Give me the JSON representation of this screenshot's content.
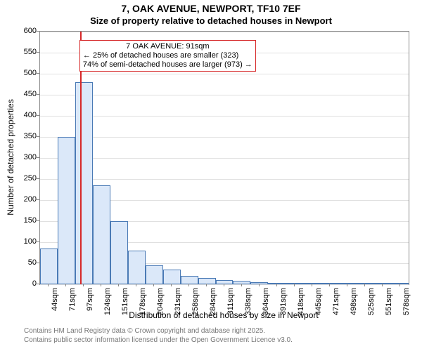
{
  "title": "7, OAK AVENUE, NEWPORT, TF10 7EF",
  "subtitle": "Size of property relative to detached houses in Newport",
  "y_axis_label": "Number of detached properties",
  "x_axis_label": "Distribution of detached houses by size in Newport",
  "chart": {
    "type": "histogram",
    "background_color": "#ffffff",
    "grid_color": "#e0e0e0",
    "bar_fill": "#dbe8f9",
    "bar_stroke": "#4a7ab5",
    "marker_color": "#d62728",
    "ylim": [
      0,
      600
    ],
    "ytick_step": 50,
    "y_ticks": [
      0,
      50,
      100,
      150,
      200,
      250,
      300,
      350,
      400,
      450,
      500,
      550,
      600
    ],
    "x_tick_labels": [
      "44sqm",
      "71sqm",
      "97sqm",
      "124sqm",
      "151sqm",
      "178sqm",
      "204sqm",
      "231sqm",
      "258sqm",
      "284sqm",
      "311sqm",
      "338sqm",
      "364sqm",
      "391sqm",
      "418sqm",
      "445sqm",
      "471sqm",
      "498sqm",
      "525sqm",
      "551sqm",
      "578sqm"
    ],
    "bars": [
      85,
      350,
      480,
      235,
      150,
      80,
      45,
      35,
      20,
      15,
      10,
      8,
      5,
      4,
      3,
      2,
      2,
      1,
      1,
      1,
      1
    ],
    "marker_bin_index": 2,
    "marker_offset_in_bin": -0.22,
    "annotation": {
      "lines": [
        "7 OAK AVENUE: 91sqm",
        "← 25% of detached houses are smaller (323)",
        "74% of semi-detached houses are larger (973) →"
      ],
      "border_color": "#d62728",
      "background_color": "#ffffff",
      "left_bin": 2,
      "top_value": 580
    }
  },
  "footer_line1": "Contains HM Land Registry data © Crown copyright and database right 2025.",
  "footer_line2": "Contains public sector information licensed under the Open Government Licence v3.0."
}
